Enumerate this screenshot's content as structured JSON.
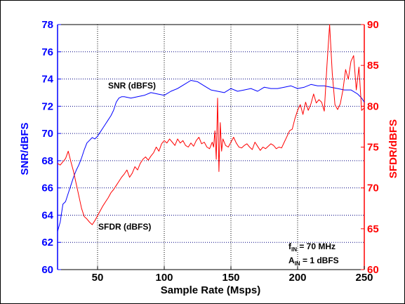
{
  "chart_data": {
    "type": "line",
    "title": "",
    "xlabel": "Sample Rate (Msps)",
    "ylabel_left": "SNR/dBFS",
    "ylabel_right": "SFDR/dBFS",
    "xlim": [
      20,
      250
    ],
    "ylim_left": [
      60,
      78
    ],
    "ylim_right": [
      60,
      90
    ],
    "x_ticks": [
      "50",
      "100",
      "150",
      "200",
      "250"
    ],
    "y_left_ticks": [
      "60",
      "62",
      "64",
      "66",
      "68",
      "70",
      "72",
      "74",
      "76",
      "78"
    ],
    "y_right_ticks": [
      "60",
      "65",
      "70",
      "75",
      "80",
      "85",
      "90"
    ],
    "grid": true,
    "colors": {
      "snr": "#0000ff",
      "sfdr": "#ff0000",
      "grid": "#000080"
    },
    "annotations": {
      "snr_label": "SNR (dBFS)",
      "sfdr_label": "SFDR (dBFS)",
      "fin_main": "f",
      "fin_sub": "IN",
      "fin_rest": " = 70 MHz",
      "ain_main": "A",
      "ain_sub": "IN",
      "ain_rest": " = 1 dBFS"
    },
    "series": [
      {
        "axis": "left",
        "x": [
          20,
          22,
          24,
          26,
          28,
          30,
          32,
          34,
          36,
          38,
          40,
          42,
          44,
          46,
          48,
          50,
          52,
          54,
          56,
          58,
          60,
          62,
          64,
          66,
          68,
          70,
          75,
          80,
          85,
          90,
          95,
          100,
          105,
          110,
          115,
          120,
          125,
          130,
          135,
          140,
          145,
          150,
          155,
          160,
          165,
          170,
          175,
          180,
          185,
          190,
          195,
          200,
          205,
          210,
          215,
          220,
          225,
          230,
          235,
          240,
          245,
          248,
          250
        ],
        "values": [
          62.8,
          63.5,
          64.8,
          65.0,
          65.6,
          66.2,
          66.8,
          67.3,
          67.7,
          68.2,
          68.8,
          69.3,
          69.5,
          69.7,
          69.6,
          69.8,
          70.1,
          70.4,
          70.7,
          71.0,
          71.3,
          71.7,
          72.3,
          72.6,
          72.7,
          72.7,
          72.6,
          72.7,
          72.8,
          73.0,
          72.9,
          72.8,
          73.1,
          73.3,
          73.6,
          73.9,
          73.8,
          73.5,
          73.2,
          73.1,
          73.0,
          73.3,
          73.1,
          73.2,
          73.3,
          73.1,
          73.4,
          73.3,
          73.3,
          73.4,
          73.5,
          73.3,
          73.4,
          73.6,
          73.5,
          73.5,
          73.4,
          73.3,
          73.2,
          73.2,
          72.9,
          72.6,
          72.3
        ]
      },
      {
        "axis": "right",
        "x": [
          20,
          22,
          24,
          26,
          28,
          30,
          32,
          34,
          36,
          38,
          40,
          42,
          44,
          46,
          48,
          50,
          52,
          54,
          56,
          58,
          60,
          62,
          64,
          66,
          68,
          70,
          72,
          74,
          76,
          78,
          80,
          82,
          84,
          86,
          88,
          90,
          92,
          94,
          96,
          98,
          100,
          102,
          104,
          106,
          108,
          110,
          112,
          114,
          116,
          118,
          120,
          122,
          124,
          126,
          128,
          130,
          132,
          134,
          136,
          137,
          138,
          139,
          140,
          141,
          142,
          143,
          144,
          146,
          148,
          150,
          152,
          154,
          156,
          158,
          160,
          162,
          164,
          166,
          168,
          170,
          172,
          174,
          176,
          178,
          180,
          182,
          184,
          186,
          188,
          190,
          192,
          194,
          196,
          198,
          200,
          202,
          204,
          206,
          208,
          210,
          212,
          214,
          216,
          218,
          220,
          222,
          224,
          226,
          228,
          230,
          232,
          234,
          236,
          238,
          240,
          242,
          244,
          246,
          248,
          250
        ],
        "values": [
          73.0,
          72.8,
          73.2,
          73.6,
          74.5,
          73.2,
          72.0,
          70.5,
          69.0,
          67.5,
          66.5,
          66.2,
          65.8,
          65.5,
          66.0,
          66.6,
          67.2,
          67.8,
          68.3,
          68.8,
          69.4,
          69.8,
          70.3,
          70.8,
          71.3,
          71.7,
          72.2,
          71.3,
          71.8,
          72.6,
          72.2,
          73.0,
          73.5,
          73.8,
          73.4,
          73.9,
          74.3,
          75.0,
          74.5,
          75.4,
          75.8,
          75.5,
          76.0,
          75.6,
          75.2,
          76.0,
          75.5,
          75.8,
          75.2,
          75.0,
          75.5,
          75.1,
          75.8,
          76.2,
          75.4,
          75.6,
          75.0,
          74.8,
          75.6,
          75.0,
          77.0,
          73.5,
          81.0,
          72.0,
          78.0,
          74.5,
          76.0,
          75.2,
          75.0,
          75.6,
          76.2,
          75.5,
          75.0,
          74.9,
          75.2,
          75.4,
          75.0,
          74.7,
          75.6,
          75.1,
          74.6,
          75.0,
          74.8,
          75.1,
          75.4,
          75.2,
          74.8,
          75.0,
          74.9,
          75.6,
          76.3,
          77.0,
          77.2,
          78.5,
          79.5,
          80.2,
          79.0,
          80.5,
          79.5,
          80.3,
          81.5,
          80.4,
          80.8,
          80.5,
          79.4,
          85.0,
          90.0,
          84.0,
          80.2,
          79.6,
          80.3,
          82.0,
          84.5,
          83.3,
          85.5,
          86.2,
          82.0,
          84.8,
          79.5,
          79.8
        ]
      }
    ]
  }
}
